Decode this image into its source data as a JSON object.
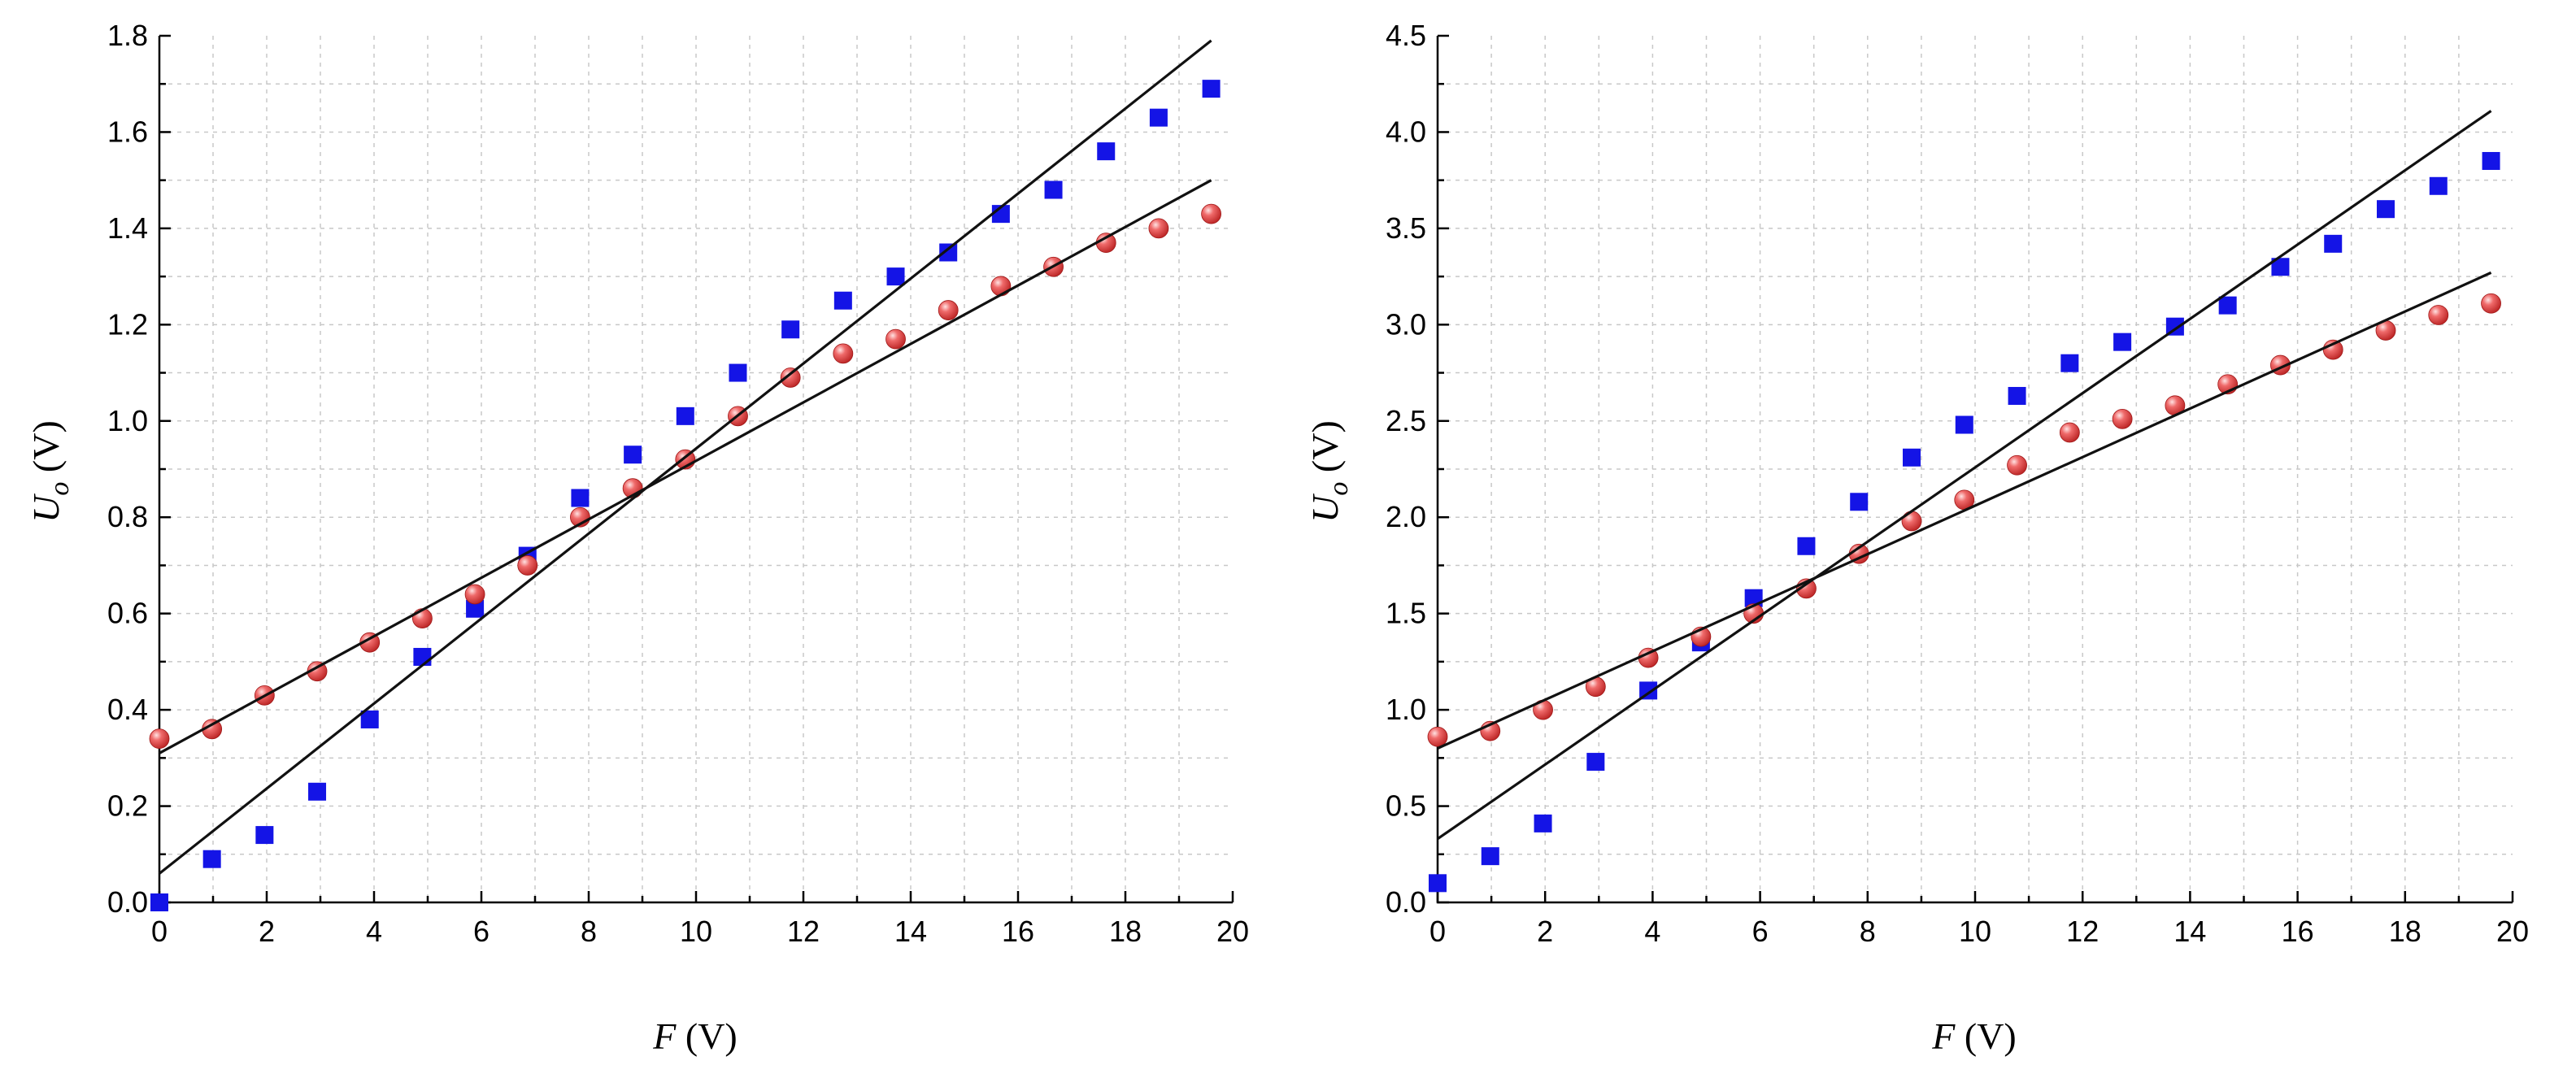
{
  "colors": {
    "square": "#1414e6",
    "circle": "#e23b3b",
    "fit": "#111111",
    "grid": "#c8c8c8"
  },
  "chart_data": [
    {
      "type": "scatter",
      "title": "",
      "xlabel_var": "F",
      "xlabel_unit": " (V)",
      "ylabel_var": "U",
      "ylabel_sub": "o",
      "ylabel_unit": " (V)",
      "xlim": [
        0,
        20
      ],
      "ylim": [
        0,
        1.8
      ],
      "xticks": [
        0,
        2,
        4,
        6,
        8,
        10,
        12,
        14,
        16,
        18,
        20
      ],
      "xtick_labels": [
        "0",
        "2",
        "4",
        "6",
        "8",
        "10",
        "12",
        "14",
        "16",
        "18",
        "20"
      ],
      "yticks": [
        0,
        0.2,
        0.4,
        0.6,
        0.8,
        1.0,
        1.2,
        1.4,
        1.6,
        1.8
      ],
      "ytick_labels": [
        "0.0",
        "0.2",
        "0.4",
        "0.6",
        "0.8",
        "1.0",
        "1.2",
        "1.4",
        "1.6",
        "1.8"
      ],
      "grid": true,
      "series": [
        {
          "name": "squares",
          "marker": "square",
          "x": [
            0,
            0.98,
            1.96,
            2.94,
            3.92,
            4.9,
            5.88,
            6.86,
            7.84,
            8.82,
            9.8,
            10.78,
            11.76,
            12.74,
            13.72,
            14.7,
            15.68,
            16.66,
            17.64,
            18.62,
            19.6
          ],
          "y": [
            0.0,
            0.09,
            0.14,
            0.23,
            0.38,
            0.51,
            0.61,
            0.72,
            0.84,
            0.93,
            1.01,
            1.1,
            1.19,
            1.25,
            1.3,
            1.35,
            1.43,
            1.48,
            1.56,
            1.63,
            1.69
          ]
        },
        {
          "name": "circles",
          "marker": "circle",
          "x": [
            0,
            0.98,
            1.96,
            2.94,
            3.92,
            4.9,
            5.88,
            6.86,
            7.84,
            8.82,
            9.8,
            10.78,
            11.76,
            12.74,
            13.72,
            14.7,
            15.68,
            16.66,
            17.64,
            18.62,
            19.6
          ],
          "y": [
            0.34,
            0.36,
            0.43,
            0.48,
            0.54,
            0.59,
            0.64,
            0.7,
            0.8,
            0.86,
            0.92,
            1.01,
            1.09,
            1.14,
            1.17,
            1.23,
            1.28,
            1.32,
            1.37,
            1.4,
            1.43
          ]
        }
      ],
      "fit_lines": [
        {
          "name": "squares-fit",
          "x": [
            0,
            19.6
          ],
          "y": [
            0.06,
            1.79
          ]
        },
        {
          "name": "circles-fit",
          "x": [
            0,
            19.6
          ],
          "y": [
            0.31,
            1.5
          ]
        }
      ]
    },
    {
      "type": "scatter",
      "title": "",
      "xlabel_var": "F",
      "xlabel_unit": " (V)",
      "ylabel_var": "U",
      "ylabel_sub": "o",
      "ylabel_unit": " (V)",
      "xlim": [
        0,
        20
      ],
      "ylim": [
        0,
        4.5
      ],
      "xticks": [
        0,
        2,
        4,
        6,
        8,
        10,
        12,
        14,
        16,
        18,
        20
      ],
      "xtick_labels": [
        "0",
        "2",
        "4",
        "6",
        "8",
        "10",
        "12",
        "14",
        "16",
        "18",
        "20"
      ],
      "yticks": [
        0,
        0.5,
        1.0,
        1.5,
        2.0,
        2.5,
        3.0,
        3.5,
        4.0,
        4.5
      ],
      "ytick_labels": [
        "0.0",
        "0.5",
        "1.0",
        "1.5",
        "2.0",
        "2.5",
        "3.0",
        "3.5",
        "4.0",
        "4.5"
      ],
      "grid": true,
      "series": [
        {
          "name": "squares",
          "marker": "square",
          "x": [
            0,
            0.98,
            1.96,
            2.94,
            3.92,
            4.9,
            5.88,
            6.86,
            7.84,
            8.82,
            9.8,
            10.78,
            11.76,
            12.74,
            13.72,
            14.7,
            15.68,
            16.66,
            17.64,
            18.62,
            19.6
          ],
          "y": [
            0.1,
            0.24,
            0.41,
            0.73,
            1.1,
            1.35,
            1.58,
            1.85,
            2.08,
            2.31,
            2.48,
            2.63,
            2.8,
            2.91,
            2.99,
            3.1,
            3.3,
            3.42,
            3.6,
            3.72,
            3.85
          ]
        },
        {
          "name": "circles",
          "marker": "circle",
          "x": [
            0,
            0.98,
            1.96,
            2.94,
            3.92,
            4.9,
            5.88,
            6.86,
            7.84,
            8.82,
            9.8,
            10.78,
            11.76,
            12.74,
            13.72,
            14.7,
            15.68,
            16.66,
            17.64,
            18.62,
            19.6
          ],
          "y": [
            0.86,
            0.89,
            1.0,
            1.12,
            1.27,
            1.38,
            1.5,
            1.63,
            1.81,
            1.98,
            2.09,
            2.27,
            2.44,
            2.51,
            2.58,
            2.69,
            2.79,
            2.87,
            2.97,
            3.05,
            3.11
          ]
        }
      ],
      "fit_lines": [
        {
          "name": "squares-fit",
          "x": [
            0,
            19.6
          ],
          "y": [
            0.33,
            4.11
          ]
        },
        {
          "name": "circles-fit",
          "x": [
            0,
            19.6
          ],
          "y": [
            0.8,
            3.27
          ]
        }
      ]
    }
  ]
}
